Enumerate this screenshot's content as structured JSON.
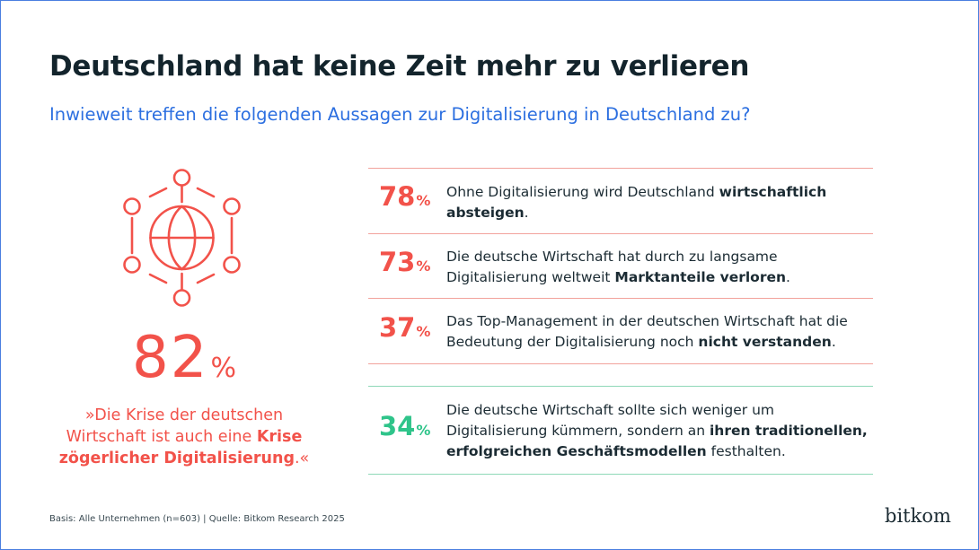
{
  "title": "Deutschland hat keine Zeit mehr zu verlieren",
  "subtitle": "Inwieweit treffen die folgenden Aussagen zur Digitalisierung in Deutschland zu?",
  "colors": {
    "accent": "#f2524a",
    "positive": "#2fc48a",
    "subtitle": "#2c6fe0",
    "dark": "#13242c"
  },
  "highlight": {
    "icon": "network-globe-icon",
    "value": "82",
    "unit": "%",
    "quote_pre": "»Die Krise der deutschen Wirtschaft ist auch eine ",
    "quote_bold": "Krise zögerlicher Digitalisierung",
    "quote_post": ".«"
  },
  "chart_data": {
    "type": "table",
    "unit": "%",
    "rows": [
      {
        "value": 78,
        "text_pre": "Ohne Digitalisierung wird Deutschland ",
        "text_bold": "wirtschaftlich absteigen",
        "text_post": ".",
        "color": "#f2524a"
      },
      {
        "value": 73,
        "text_pre": "Die deutsche Wirtschaft hat durch zu langsame Digitalisierung weltweit ",
        "text_bold": "Marktanteile verloren",
        "text_post": ".",
        "color": "#f2524a"
      },
      {
        "value": 37,
        "text_pre": "Das Top-Management in der deutschen Wirtschaft hat die Bedeutung der Digitalisierung noch ",
        "text_bold": "nicht verstanden",
        "text_post": ".",
        "color": "#f2524a"
      },
      {
        "value": 34,
        "text_pre": "Die deutsche Wirtschaft sollte sich weniger um Digitalisierung kümmern, sondern an ",
        "text_bold": "ihren traditionellen, erfolgreichen Geschäftsmodellen",
        "text_post": " festhalten.",
        "color": "#2fc48a"
      }
    ]
  },
  "footer": "Basis: Alle Unternehmen (n=603) | Quelle: Bitkom Research 2025",
  "logo": "bitkom"
}
